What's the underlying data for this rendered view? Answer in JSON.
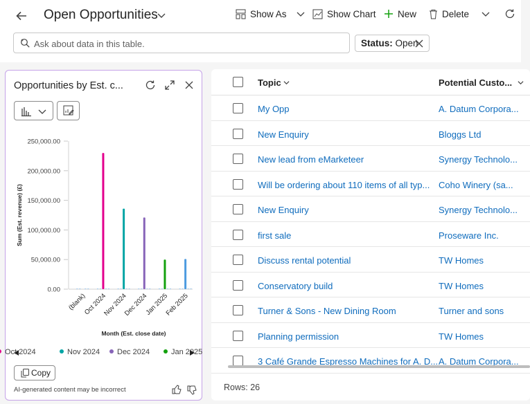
{
  "header": {
    "title": "Open Opportunities",
    "toolbar": {
      "show_as": "Show As",
      "show_chart": "Show Chart",
      "new": "New",
      "delete": "Delete"
    },
    "search_placeholder": "Ask about data in this table.",
    "filter_chip": {
      "label": "Status:",
      "value": "Open"
    }
  },
  "chart_panel": {
    "title": "Opportunities by Est. c...",
    "copy_label": "Copy",
    "disclaimer": "AI-generated content may be incorrect",
    "legend": [
      {
        "label": "Oct 2024",
        "color": "#e3008c"
      },
      {
        "label": "Nov 2024",
        "color": "#00a5a5"
      },
      {
        "label": "Dec 2024",
        "color": "#8764b8"
      },
      {
        "label": "Jan 2025",
        "color": "#13a10e"
      }
    ]
  },
  "chart_data": {
    "type": "bar",
    "xlabel": "Month (Est. close date)",
    "ylabel": "Sum (Est. revenue) (£)",
    "ylim": [
      0,
      250000
    ],
    "yticks": [
      "250,000.00",
      "200,000.00",
      "150,000.00",
      "100,000.00",
      "50,000.00",
      "0.00"
    ],
    "categories": [
      "(blank)",
      "Oct 2024",
      "Nov 2024",
      "Dec 2024",
      "Jan 2025",
      "Feb 2025"
    ],
    "colors": [
      "#4d9be0",
      "#e3008c",
      "#00a5a5",
      "#8764b8",
      "#13a10e",
      "#4d9be0"
    ],
    "values": [
      0,
      230000,
      136000,
      121000,
      50000,
      51000
    ],
    "legend_position": "bottom"
  },
  "grid": {
    "columns": {
      "topic": "Topic",
      "customer": "Potential Custo..."
    },
    "rows": [
      {
        "topic": "My Opp",
        "customer": "A. Datum Corpora..."
      },
      {
        "topic": "New Enquiry",
        "customer": "Bloggs Ltd"
      },
      {
        "topic": "New lead from eMarketeer",
        "customer": "Synergy Technolo..."
      },
      {
        "topic": "Will be ordering about 110 items of all typ...",
        "customer": "Coho Winery (sa..."
      },
      {
        "topic": "New Enquiry",
        "customer": "Synergy Technolo..."
      },
      {
        "topic": "first sale",
        "customer": "Proseware Inc."
      },
      {
        "topic": "Discuss rental potential",
        "customer": "TW Homes"
      },
      {
        "topic": "Conservatory build",
        "customer": "TW Homes"
      },
      {
        "topic": "Turner & Sons - New Dining Room",
        "customer": "Turner and sons"
      },
      {
        "topic": "Planning permission",
        "customer": "TW Homes"
      },
      {
        "topic": "3 Café Grande Espresso Machines for A. D...",
        "customer": "A. Datum Corpora..."
      }
    ],
    "rows_label": "Rows: 26"
  }
}
